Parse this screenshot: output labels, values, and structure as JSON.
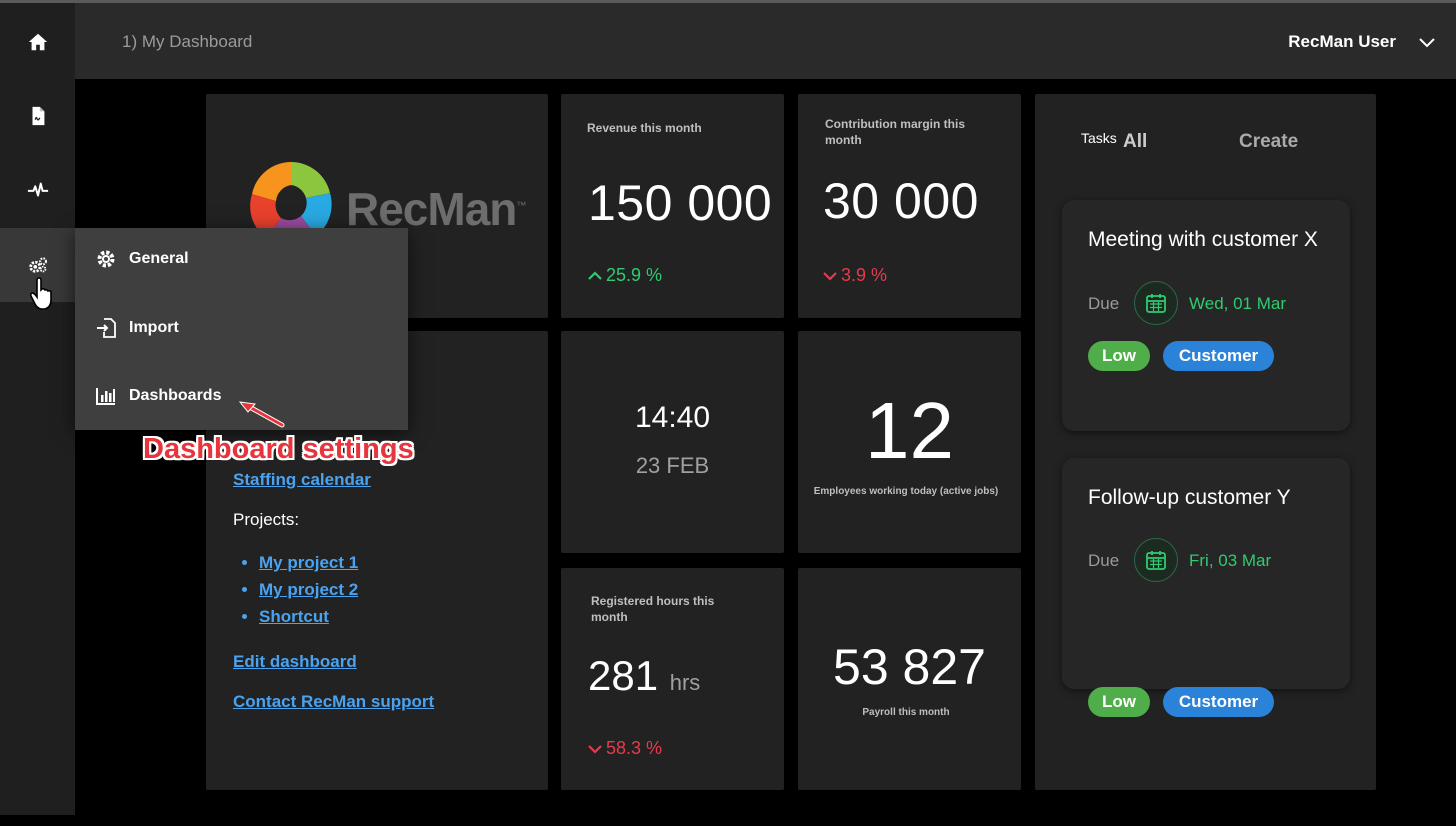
{
  "header": {
    "breadcrumb": "1) My Dashboard",
    "user_name": "RecMan User"
  },
  "sidebar": {
    "items": [
      {
        "icon": "home-icon"
      },
      {
        "icon": "document-icon"
      },
      {
        "icon": "pulse-icon"
      },
      {
        "icon": "settings-gears-icon",
        "active": true
      }
    ]
  },
  "settings_menu": {
    "items": [
      {
        "label": "General",
        "icon": "gear-icon"
      },
      {
        "label": "Import",
        "icon": "import-icon"
      },
      {
        "label": "Dashboards",
        "icon": "bar-chart-icon"
      }
    ]
  },
  "annotation": "Dashboard settings",
  "logo": {
    "text": "RecMan",
    "tm": "™"
  },
  "links_tile": {
    "staffing_calendar": "Staffing calendar",
    "projects_label": "Projects:",
    "projects": [
      "My project 1",
      "My project 2",
      "Shortcut"
    ],
    "edit_dashboard": "Edit dashboard",
    "contact_support": "Contact RecMan support"
  },
  "revenue": {
    "label": "Revenue this month",
    "value": "150 000",
    "delta": "25.9 %",
    "trend": "up"
  },
  "margin": {
    "label": "Contribution margin this month",
    "value": "30 000",
    "delta": "3.9 %",
    "trend": "down"
  },
  "clock": {
    "time": "14:40",
    "date": "23 FEB"
  },
  "employees": {
    "value": "12",
    "label": "Employees working today (active jobs)"
  },
  "hours": {
    "label": "Registered hours this month",
    "value": "281",
    "unit": "hrs",
    "delta": "58.3 %",
    "trend": "down"
  },
  "payroll": {
    "value": "53 827",
    "label": "Payroll this month"
  },
  "tasks": {
    "title": "Tasks",
    "filter": "All",
    "create": "Create",
    "items": [
      {
        "title": "Meeting with customer X",
        "due_label": "Due",
        "due_date": "Wed, 01 Mar",
        "priority": "Low",
        "category": "Customer"
      },
      {
        "title": "Follow-up customer Y",
        "due_label": "Due",
        "due_date": "Fri, 03 Mar",
        "priority": "Low",
        "category": "Customer"
      }
    ]
  },
  "colors": {
    "positive": "#2ecc71",
    "negative": "#e8394e",
    "link": "#4aa3f0",
    "low_badge": "#4fae4a",
    "customer_badge": "#2a83d8",
    "annotation": "#e8343c"
  }
}
